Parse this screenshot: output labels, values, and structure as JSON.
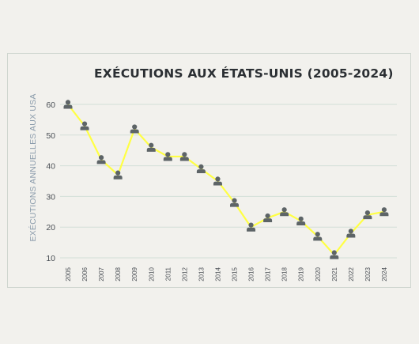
{
  "chart_data": {
    "type": "line",
    "title": "EXÉCUTIONS AUX ÉTATS-UNIS (2005-2024)",
    "xlabel": "",
    "ylabel": "EXÉCUTIONS ANNUELLES AUX USA",
    "categories": [
      "2005",
      "2006",
      "2007",
      "2008",
      "2009",
      "2010",
      "2011",
      "2012",
      "2013",
      "2014",
      "2015",
      "2016",
      "2017",
      "2018",
      "2019",
      "2020",
      "2021",
      "2022",
      "2023",
      "2024"
    ],
    "values": [
      60,
      53,
      42,
      37,
      52,
      46,
      43,
      43,
      39,
      35,
      28,
      20,
      23,
      25,
      22,
      17,
      11,
      18,
      24,
      25
    ],
    "ylim": [
      10,
      60
    ],
    "yticks": [
      10,
      20,
      30,
      40,
      50,
      60
    ],
    "grid": true,
    "marker": "person-icon",
    "colors": {
      "line": "#ffff44",
      "marker": "#5d6467",
      "grid": "#d3dfd8",
      "title": "#2b2f33",
      "ylabel": "#8a9bab"
    }
  }
}
